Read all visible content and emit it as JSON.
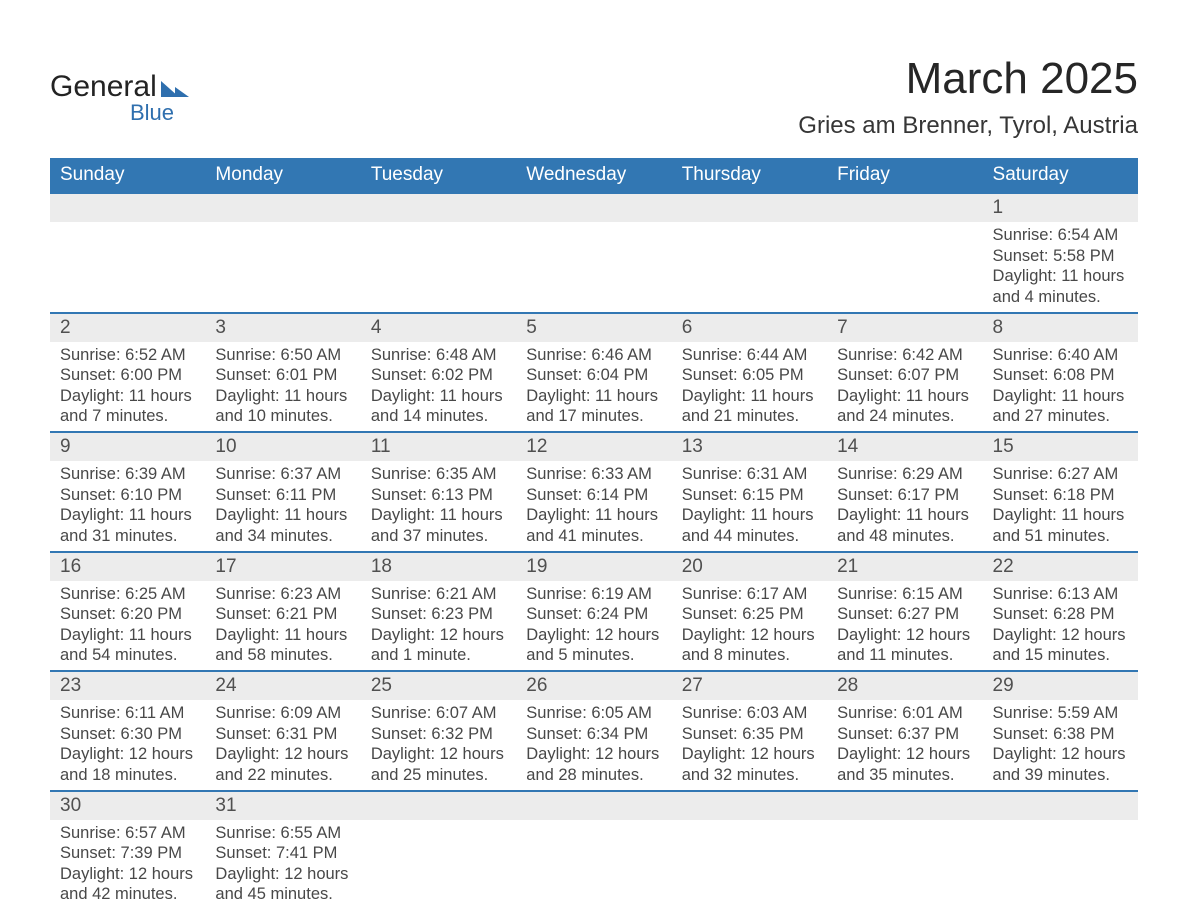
{
  "brand": {
    "name_part1": "General",
    "name_part2": "Blue"
  },
  "title": "March 2025",
  "location": "Gries am Brenner, Tyrol, Austria",
  "colors": {
    "header_bg": "#3277b3",
    "header_fg": "#ffffff",
    "daynum_bg": "#ececec",
    "row_border": "#3277b3",
    "text": "#404040",
    "title_text": "#262626",
    "brand_blue": "#2f6fae"
  },
  "layout": {
    "columns": 7,
    "week_rows": 6
  },
  "day_headers": [
    "Sunday",
    "Monday",
    "Tuesday",
    "Wednesday",
    "Thursday",
    "Friday",
    "Saturday"
  ],
  "weeks": [
    [
      null,
      null,
      null,
      null,
      null,
      null,
      {
        "n": "1",
        "sunrise": "6:54 AM",
        "sunset": "5:58 PM",
        "daylight": "11 hours and 4 minutes."
      }
    ],
    [
      {
        "n": "2",
        "sunrise": "6:52 AM",
        "sunset": "6:00 PM",
        "daylight": "11 hours and 7 minutes."
      },
      {
        "n": "3",
        "sunrise": "6:50 AM",
        "sunset": "6:01 PM",
        "daylight": "11 hours and 10 minutes."
      },
      {
        "n": "4",
        "sunrise": "6:48 AM",
        "sunset": "6:02 PM",
        "daylight": "11 hours and 14 minutes."
      },
      {
        "n": "5",
        "sunrise": "6:46 AM",
        "sunset": "6:04 PM",
        "daylight": "11 hours and 17 minutes."
      },
      {
        "n": "6",
        "sunrise": "6:44 AM",
        "sunset": "6:05 PM",
        "daylight": "11 hours and 21 minutes."
      },
      {
        "n": "7",
        "sunrise": "6:42 AM",
        "sunset": "6:07 PM",
        "daylight": "11 hours and 24 minutes."
      },
      {
        "n": "8",
        "sunrise": "6:40 AM",
        "sunset": "6:08 PM",
        "daylight": "11 hours and 27 minutes."
      }
    ],
    [
      {
        "n": "9",
        "sunrise": "6:39 AM",
        "sunset": "6:10 PM",
        "daylight": "11 hours and 31 minutes."
      },
      {
        "n": "10",
        "sunrise": "6:37 AM",
        "sunset": "6:11 PM",
        "daylight": "11 hours and 34 minutes."
      },
      {
        "n": "11",
        "sunrise": "6:35 AM",
        "sunset": "6:13 PM",
        "daylight": "11 hours and 37 minutes."
      },
      {
        "n": "12",
        "sunrise": "6:33 AM",
        "sunset": "6:14 PM",
        "daylight": "11 hours and 41 minutes."
      },
      {
        "n": "13",
        "sunrise": "6:31 AM",
        "sunset": "6:15 PM",
        "daylight": "11 hours and 44 minutes."
      },
      {
        "n": "14",
        "sunrise": "6:29 AM",
        "sunset": "6:17 PM",
        "daylight": "11 hours and 48 minutes."
      },
      {
        "n": "15",
        "sunrise": "6:27 AM",
        "sunset": "6:18 PM",
        "daylight": "11 hours and 51 minutes."
      }
    ],
    [
      {
        "n": "16",
        "sunrise": "6:25 AM",
        "sunset": "6:20 PM",
        "daylight": "11 hours and 54 minutes."
      },
      {
        "n": "17",
        "sunrise": "6:23 AM",
        "sunset": "6:21 PM",
        "daylight": "11 hours and 58 minutes."
      },
      {
        "n": "18",
        "sunrise": "6:21 AM",
        "sunset": "6:23 PM",
        "daylight": "12 hours and 1 minute."
      },
      {
        "n": "19",
        "sunrise": "6:19 AM",
        "sunset": "6:24 PM",
        "daylight": "12 hours and 5 minutes."
      },
      {
        "n": "20",
        "sunrise": "6:17 AM",
        "sunset": "6:25 PM",
        "daylight": "12 hours and 8 minutes."
      },
      {
        "n": "21",
        "sunrise": "6:15 AM",
        "sunset": "6:27 PM",
        "daylight": "12 hours and 11 minutes."
      },
      {
        "n": "22",
        "sunrise": "6:13 AM",
        "sunset": "6:28 PM",
        "daylight": "12 hours and 15 minutes."
      }
    ],
    [
      {
        "n": "23",
        "sunrise": "6:11 AM",
        "sunset": "6:30 PM",
        "daylight": "12 hours and 18 minutes."
      },
      {
        "n": "24",
        "sunrise": "6:09 AM",
        "sunset": "6:31 PM",
        "daylight": "12 hours and 22 minutes."
      },
      {
        "n": "25",
        "sunrise": "6:07 AM",
        "sunset": "6:32 PM",
        "daylight": "12 hours and 25 minutes."
      },
      {
        "n": "26",
        "sunrise": "6:05 AM",
        "sunset": "6:34 PM",
        "daylight": "12 hours and 28 minutes."
      },
      {
        "n": "27",
        "sunrise": "6:03 AM",
        "sunset": "6:35 PM",
        "daylight": "12 hours and 32 minutes."
      },
      {
        "n": "28",
        "sunrise": "6:01 AM",
        "sunset": "6:37 PM",
        "daylight": "12 hours and 35 minutes."
      },
      {
        "n": "29",
        "sunrise": "5:59 AM",
        "sunset": "6:38 PM",
        "daylight": "12 hours and 39 minutes."
      }
    ],
    [
      {
        "n": "30",
        "sunrise": "6:57 AM",
        "sunset": "7:39 PM",
        "daylight": "12 hours and 42 minutes."
      },
      {
        "n": "31",
        "sunrise": "6:55 AM",
        "sunset": "7:41 PM",
        "daylight": "12 hours and 45 minutes."
      },
      null,
      null,
      null,
      null,
      null
    ]
  ],
  "labels": {
    "sunrise": "Sunrise:",
    "sunset": "Sunset:",
    "daylight": "Daylight:"
  }
}
